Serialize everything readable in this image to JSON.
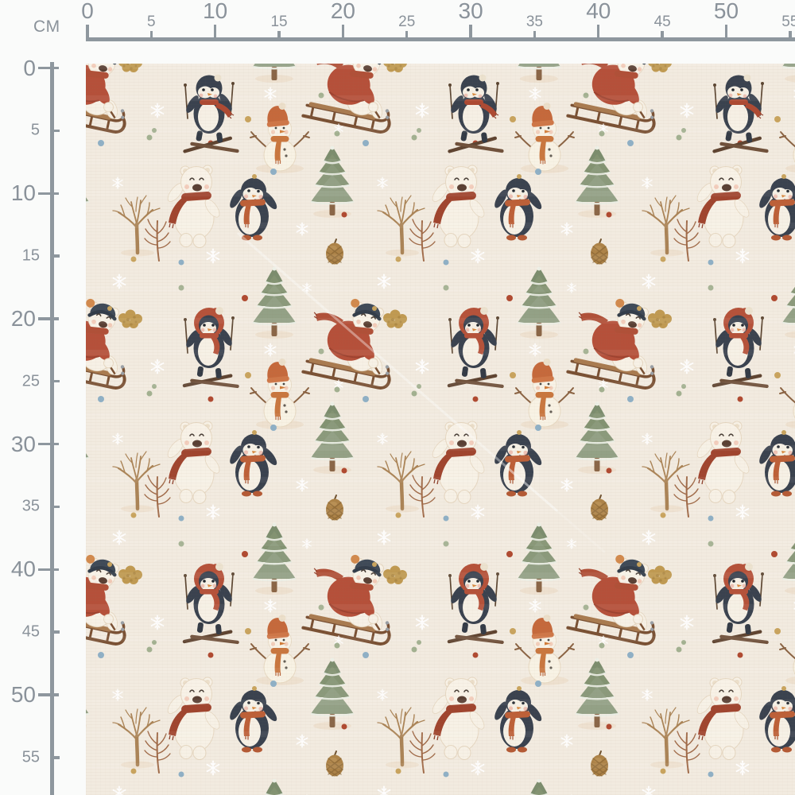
{
  "rulers": {
    "unit_label": "CM",
    "top_labels": [
      "0",
      "5",
      "10",
      "15",
      "20",
      "25",
      "30",
      "35",
      "40",
      "45",
      "50",
      "55"
    ],
    "left_labels": [
      "0",
      "5",
      "10",
      "15",
      "20",
      "25",
      "30",
      "35",
      "40",
      "45",
      "50",
      "55"
    ]
  },
  "pattern": {
    "name": "winter-animals-fabric-print",
    "description": "Watercolor Christmas fabric preview: polar bears and penguins sledding, skiing and hugging among snowmen, snowy pine trees, bare winter trees, pinecones, golden leaf clusters, snowflakes and confetti dots on a cream background, shown behind centimetre rulers",
    "motifs": [
      "polar-bear-hugging-penguin",
      "red-hood-penguin-skiing",
      "black-head-penguin-skating",
      "polar-bear-sledding-red-sweater",
      "snowman-orange-hat-and-scarf",
      "snowy-pine-tree",
      "bare-winter-tree",
      "pinecone",
      "golden-leaf-cluster",
      "twig-sprig",
      "snowflake",
      "confetti-dot"
    ],
    "colors": {
      "background": "#f2ebe0",
      "margin_white": "#fafbfa",
      "bear_white": "#f7f1e6",
      "penguin_dark": "#3a424f",
      "scarf_dark_red": "#a0452f",
      "rust_orange": "#c9773f",
      "sweater_red": "#b5503a",
      "beanie_navy": "#3f4a58",
      "pompom_orange": "#d28a4e",
      "pine_green": "#8b9a7c",
      "sled_wood": "#7a5134",
      "tree_brown": "#ab8457",
      "gold_leaf": "#c09a52",
      "dot_sage": "#a3b191",
      "dot_blue": "#8fb0c6",
      "dot_rust": "#b04a31",
      "dot_gold": "#c9a45e",
      "ruler_gray": "#8e979e",
      "label_gray": "#8a929a"
    }
  }
}
